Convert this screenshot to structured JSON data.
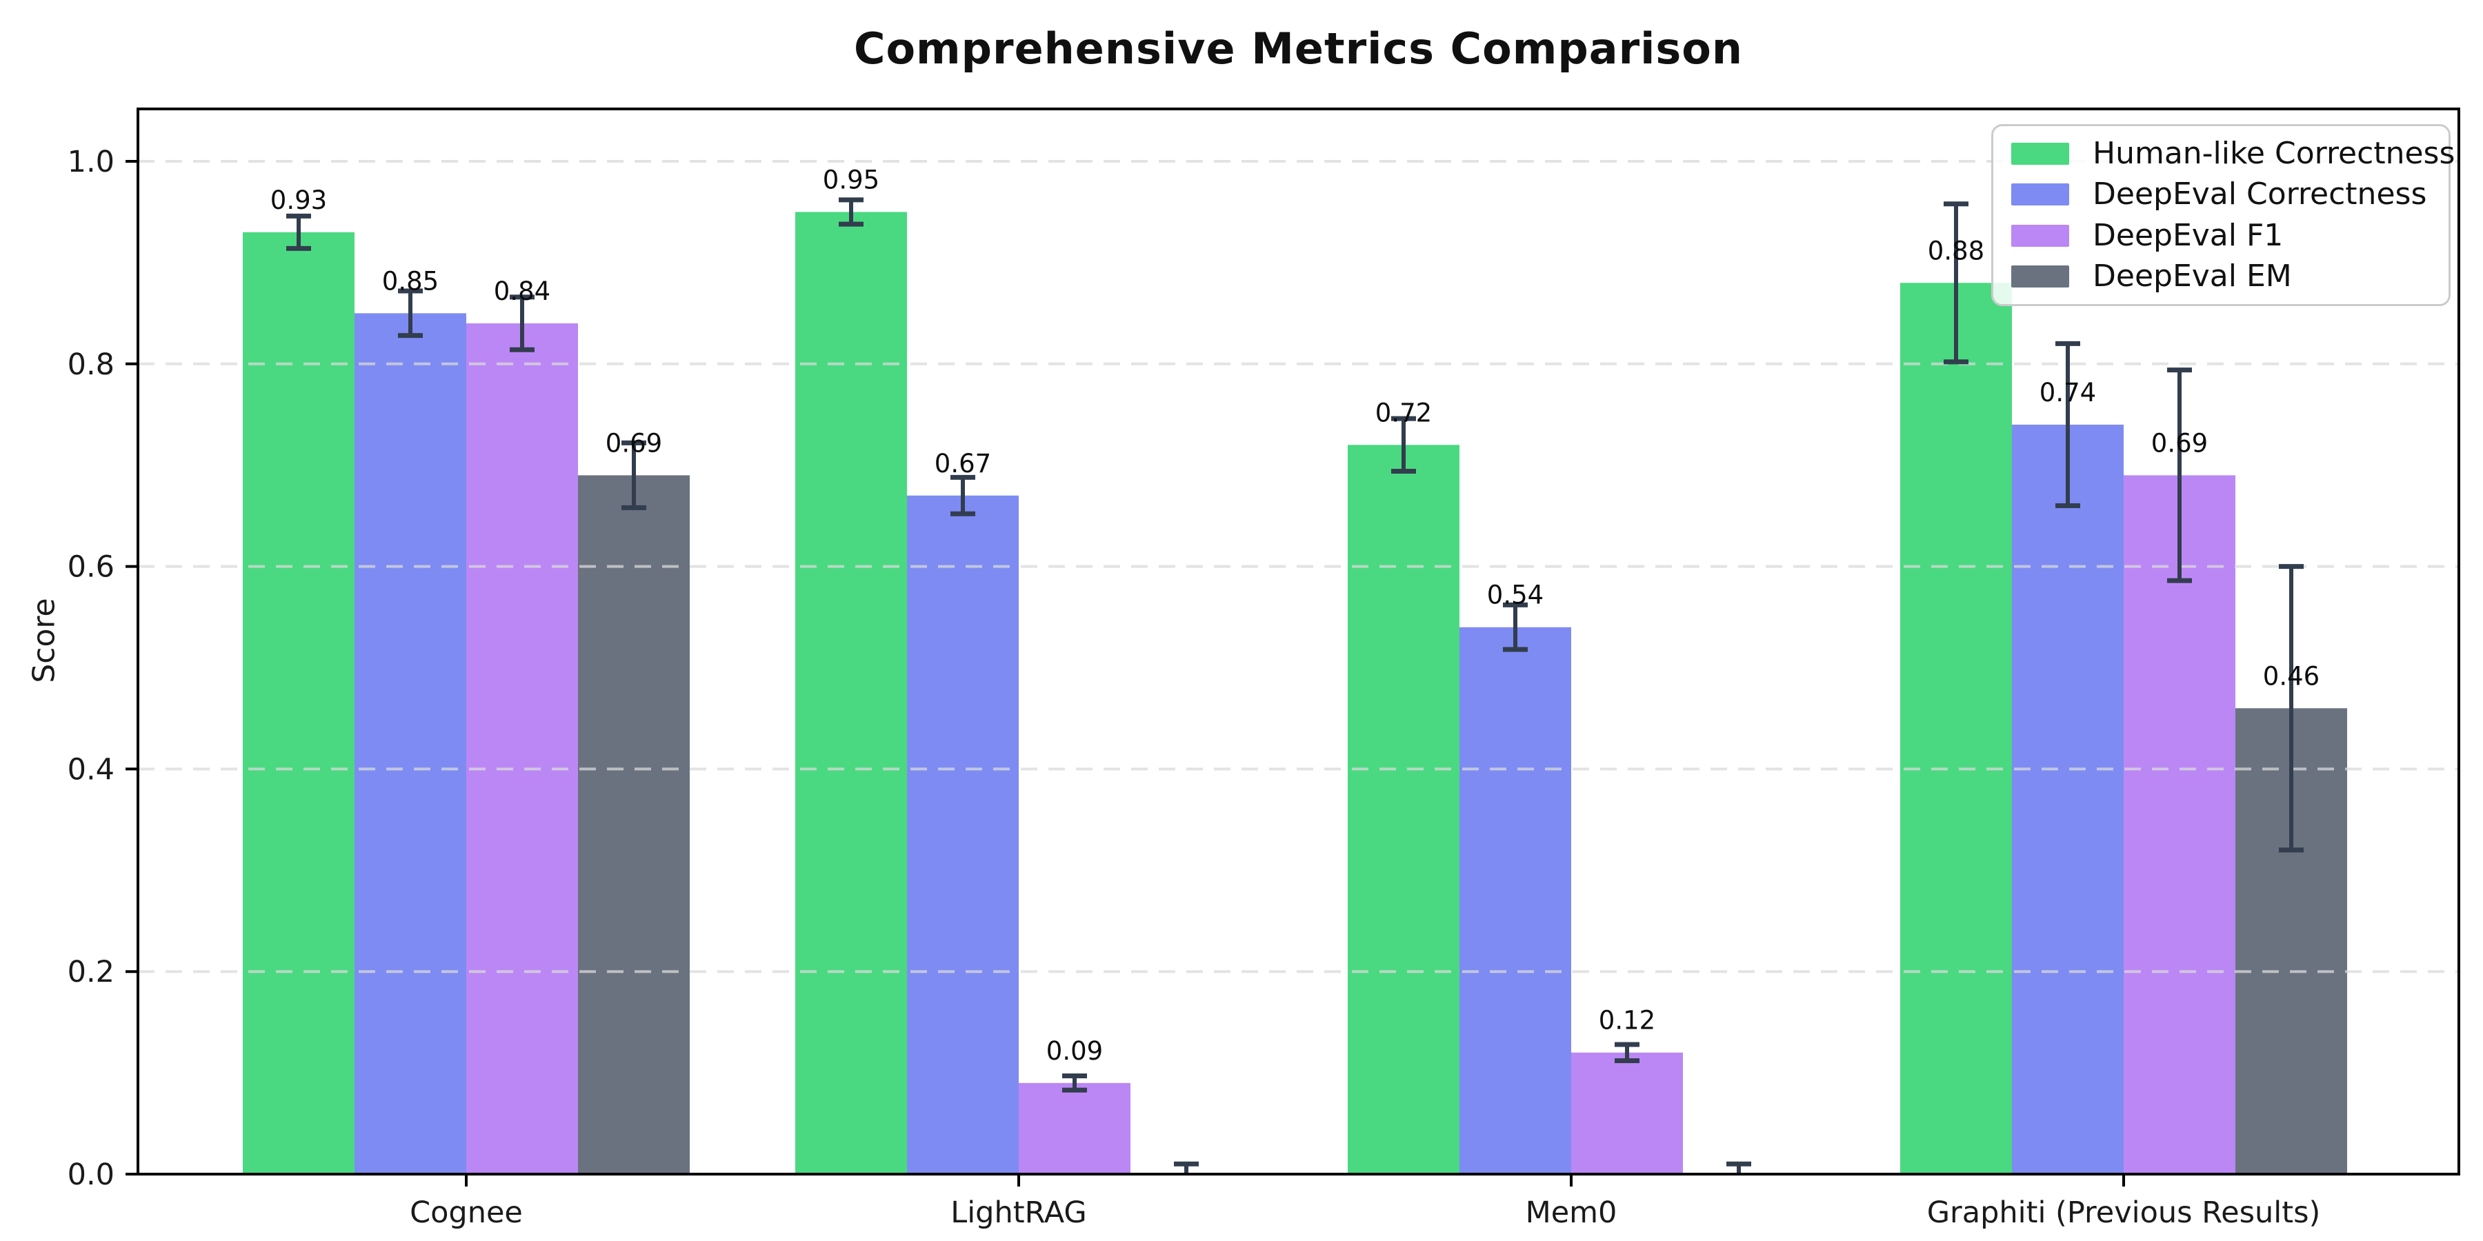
{
  "chart_data": {
    "type": "bar",
    "title": "Comprehensive Metrics Comparison",
    "ylabel": "Score",
    "xlabel": "",
    "categories": [
      "Cognee",
      "LightRAG",
      "Mem0",
      "Graphiti (Previous Results)"
    ],
    "series": [
      {
        "name": "Human-like Correctness",
        "color": "#4ad981",
        "values": [
          0.93,
          0.95,
          0.72,
          0.88
        ],
        "errors": [
          0.016,
          0.012,
          0.026,
          0.078
        ],
        "labels": [
          "0.93",
          "0.95",
          "0.72",
          "0.88"
        ]
      },
      {
        "name": "DeepEval Correctness",
        "color": "#7e8bf2",
        "values": [
          0.85,
          0.67,
          0.54,
          0.74
        ],
        "errors": [
          0.022,
          0.018,
          0.022,
          0.08
        ],
        "labels": [
          "0.85",
          "0.67",
          "0.54",
          "0.74"
        ]
      },
      {
        "name": "DeepEval F1",
        "color": "#bb87f5",
        "values": [
          0.84,
          0.09,
          0.12,
          0.69
        ],
        "errors": [
          0.026,
          0.007,
          0.008,
          0.104
        ],
        "labels": [
          "0.84",
          "0.09",
          "0.12",
          "0.69"
        ]
      },
      {
        "name": "DeepEval EM",
        "color": "#6a7280",
        "values": [
          0.69,
          0.0,
          0.0,
          0.46
        ],
        "errors": [
          0.032,
          0.01,
          0.01,
          0.14
        ],
        "labels": [
          "0.69",
          "",
          "",
          "0.46"
        ]
      }
    ],
    "ytick_labels": [
      "0.0",
      "0.2",
      "0.4",
      "0.6",
      "0.8",
      "1.0"
    ],
    "yticks": [
      0.0,
      0.2,
      0.4,
      0.6,
      0.8,
      1.0
    ],
    "ylim": [
      0,
      1.05
    ],
    "grid": {
      "axis": "y",
      "style": "dashed"
    },
    "legend_position": "upper right",
    "error_bar_color": "#323d4e",
    "axis_color": "#000000",
    "grid_color": "#d9d9d9"
  }
}
